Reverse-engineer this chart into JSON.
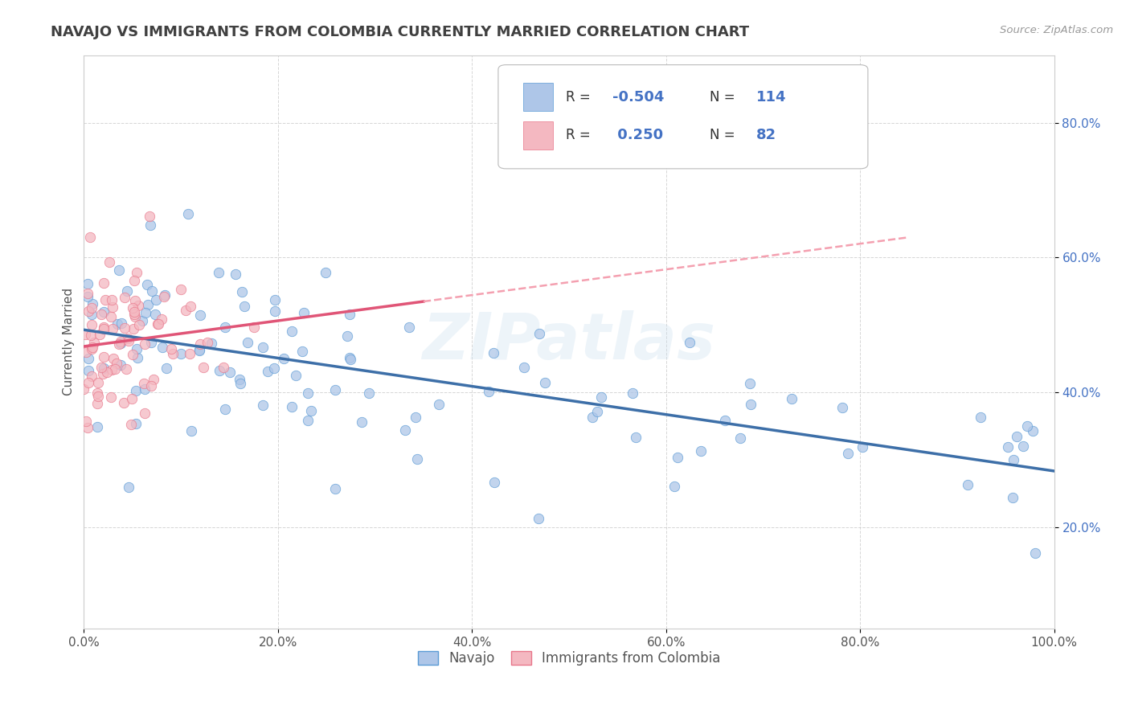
{
  "title": "NAVAJO VS IMMIGRANTS FROM COLOMBIA CURRENTLY MARRIED CORRELATION CHART",
  "source": "Source: ZipAtlas.com",
  "ylabel": "Currently Married",
  "watermark": "ZIPatlas",
  "navajo_color": "#aec6e8",
  "navajo_edge_color": "#5b9bd5",
  "colombia_color": "#f4b8c1",
  "colombia_edge_color": "#e8768a",
  "navajo_line_color": "#3d6fa8",
  "colombia_line_color": "#e05577",
  "colombia_dash_color": "#f4a0b0",
  "bg_color": "#ffffff",
  "grid_color": "#cccccc",
  "title_color": "#404040",
  "ytick_color": "#4472c4",
  "R_navajo": -0.504,
  "R_colombia": 0.25,
  "N_navajo": 114,
  "N_colombia": 82,
  "xlim": [
    0.0,
    1.0
  ],
  "ylim": [
    0.05,
    0.9
  ],
  "ytick_values": [
    0.2,
    0.4,
    0.6,
    0.8
  ],
  "ytick_labels": [
    "20.0%",
    "40.0%",
    "60.0%",
    "80.0%"
  ],
  "xtick_values": [
    0.0,
    0.2,
    0.4,
    0.6,
    0.8,
    1.0
  ],
  "xtick_labels": [
    "0.0%",
    "20.0%",
    "40.0%",
    "60.0%",
    "80.0%",
    "100.0%"
  ]
}
